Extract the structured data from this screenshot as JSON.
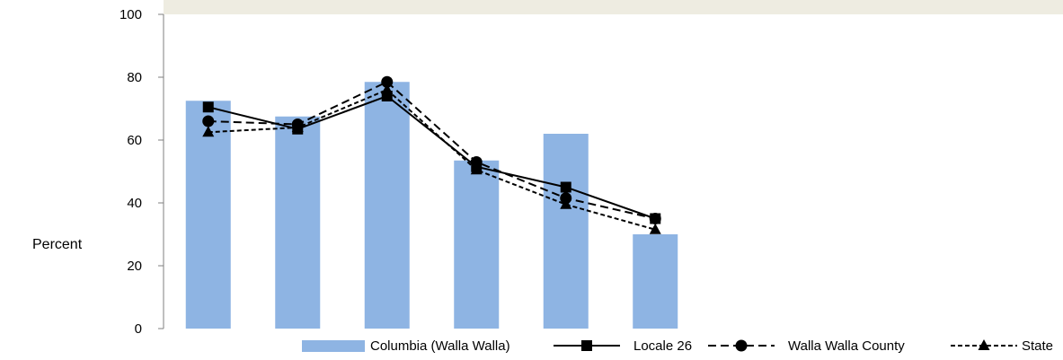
{
  "chart_data": {
    "type": "bar",
    "title": "",
    "xlabel": "",
    "ylabel": "Percent",
    "ylim": [
      0,
      100
    ],
    "yticks": [
      0,
      20,
      40,
      60,
      80,
      100
    ],
    "categories": [
      "",
      "",
      "",
      "",
      "",
      ""
    ],
    "grid": false,
    "legend_position": "bottom-right",
    "bars": {
      "name": "Columbia (Walla Walla)",
      "color": "#8eb4e3",
      "values": [
        72.5,
        67.5,
        78.5,
        53.5,
        62,
        30
      ]
    },
    "series": [
      {
        "name": "Locale 26",
        "marker": "square",
        "dash": "solid",
        "values": [
          70.5,
          63.5,
          74,
          51.5,
          45,
          35
        ]
      },
      {
        "name": "Walla Walla County",
        "marker": "circle",
        "dash": "long-dash",
        "values": [
          66,
          65,
          78.5,
          53,
          41.5,
          35
        ]
      },
      {
        "name": "State",
        "marker": "triangle",
        "dash": "short-dash",
        "values": [
          62.5,
          64,
          76,
          50.5,
          39.5,
          31.5
        ]
      }
    ]
  }
}
